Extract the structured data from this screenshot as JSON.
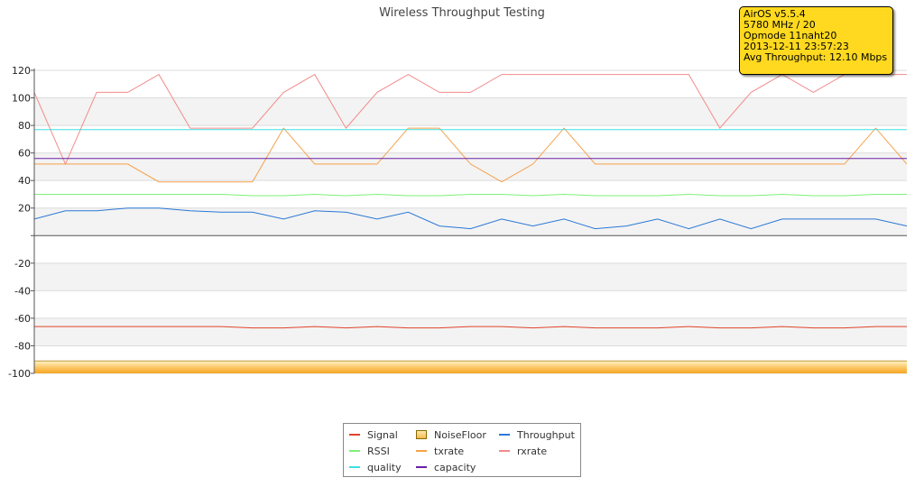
{
  "info": {
    "lines": [
      "AirOS v5.5.4",
      "5780 MHz / 20",
      "Opmode 11naht20",
      "2013-12-11 23:57:23",
      "Avg Throughput: 12.10 Mbps"
    ]
  },
  "colors": {
    "Signal": "#e0442a",
    "NoiseFloor": "#f5a623",
    "Throughput": "#2a78d6",
    "RSSI": "#7ef07a",
    "txrate": "#f5a04a",
    "rxrate": "#f28b8b",
    "quality": "#3ee0e0",
    "capacity": "#6a1fa8"
  },
  "chart_data": {
    "type": "line",
    "title": "Wireless Throughput Testing",
    "ylim": [
      -100,
      120
    ],
    "yticks": [
      120,
      100,
      80,
      60,
      40,
      20,
      0,
      -20,
      -40,
      -60,
      -80,
      -100
    ],
    "ytick_labels": [
      "120",
      "100",
      "80",
      "60",
      "40",
      "20",
      "",
      "-20",
      "-40",
      "-60",
      "-80",
      "-100"
    ],
    "grid": true,
    "legend_position": "bottom",
    "series": [
      {
        "name": "rxrate",
        "values": [
          104,
          52,
          104,
          104,
          117,
          78,
          78,
          78,
          104,
          117,
          78,
          104,
          117,
          104,
          104,
          117,
          117,
          117,
          117,
          117,
          117,
          117,
          78,
          104,
          117,
          104,
          117,
          117,
          117
        ]
      },
      {
        "name": "txrate",
        "values": [
          52,
          52,
          52,
          52,
          39,
          39,
          39,
          39,
          78,
          52,
          52,
          52,
          78,
          78,
          52,
          39,
          52,
          78,
          52,
          52,
          52,
          52,
          52,
          52,
          52,
          52,
          52,
          78,
          52
        ]
      },
      {
        "name": "RSSI",
        "values": [
          30,
          30,
          30,
          30,
          30,
          30,
          30,
          29,
          29,
          30,
          29,
          30,
          29,
          29,
          30,
          30,
          29,
          30,
          29,
          29,
          29,
          30,
          29,
          29,
          30,
          29,
          29,
          30,
          30
        ]
      },
      {
        "name": "Throughput",
        "values": [
          12,
          18,
          18,
          20,
          20,
          18,
          17,
          17,
          12,
          18,
          17,
          12,
          17,
          7,
          5,
          12,
          7,
          12,
          5,
          7,
          12,
          5,
          12,
          5,
          12,
          12,
          12,
          12,
          7
        ]
      },
      {
        "name": "Signal",
        "values": [
          -66,
          -66,
          -66,
          -66,
          -66,
          -66,
          -66,
          -67,
          -67,
          -66,
          -67,
          -66,
          -67,
          -67,
          -66,
          -66,
          -67,
          -66,
          -67,
          -67,
          -67,
          -66,
          -67,
          -67,
          -66,
          -67,
          -67,
          -66,
          -66
        ]
      },
      {
        "name": "quality",
        "values": [
          77,
          77,
          77,
          77,
          77,
          77,
          77,
          77,
          77,
          77,
          77,
          77,
          77,
          77,
          77,
          77,
          77,
          77,
          77,
          77,
          77,
          77,
          77,
          77,
          77,
          77,
          77,
          77,
          77
        ]
      },
      {
        "name": "capacity",
        "values": [
          56,
          56,
          56,
          56,
          56,
          56,
          56,
          56,
          56,
          56,
          56,
          56,
          56,
          56,
          56,
          56,
          56,
          56,
          56,
          56,
          56,
          56,
          56,
          56,
          56,
          56,
          56,
          56,
          56
        ]
      }
    ],
    "noise_floor": {
      "name": "NoiseFloor",
      "value": -91,
      "base": -100
    },
    "legend": [
      [
        "Signal",
        "NoiseFloor",
        "Throughput"
      ],
      [
        "RSSI",
        "txrate",
        "rxrate"
      ],
      [
        "quality",
        "capacity"
      ]
    ]
  }
}
